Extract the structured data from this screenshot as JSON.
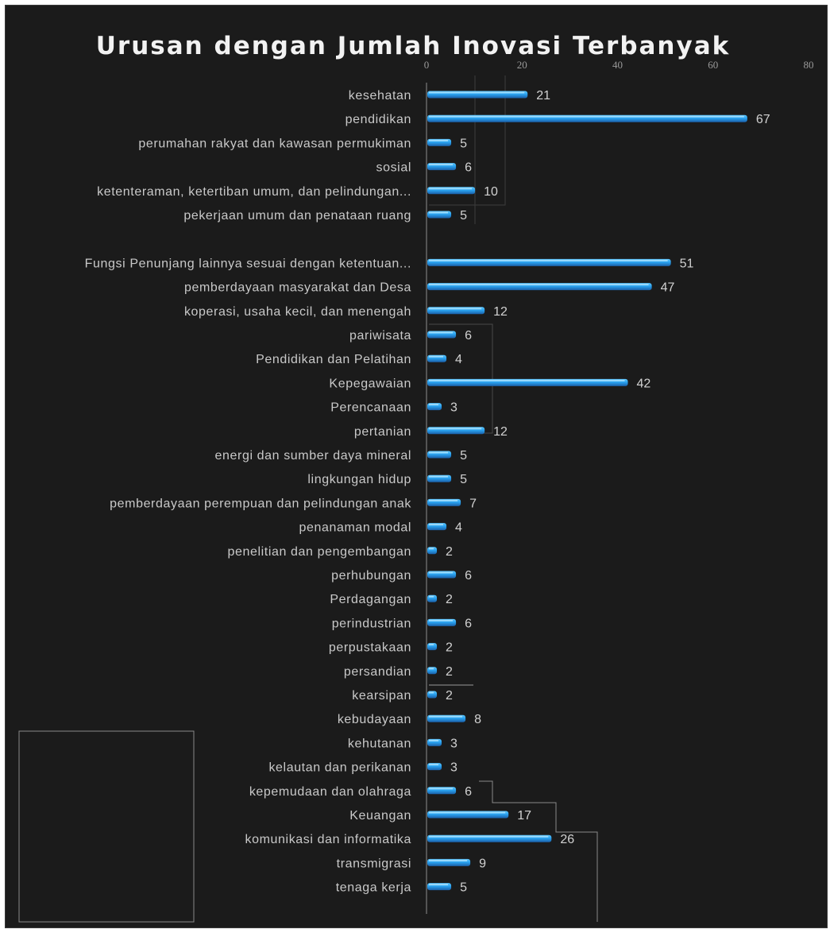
{
  "chart_data": {
    "type": "bar",
    "orientation": "horizontal",
    "title": "Urusan dengan Jumlah Inovasi Terbanyak",
    "xlim": [
      0,
      80
    ],
    "x_ticks": [
      "0",
      "20",
      "40",
      "60",
      "80"
    ],
    "grid": false,
    "legend": "none",
    "bar_color": "#29a8f0",
    "categories": [
      "kesehatan",
      "pendidikan",
      "perumahan rakyat dan kawasan permukiman",
      "sosial",
      "ketenteraman, ketertiban umum, dan pelindungan...",
      "pekerjaan umum dan penataan ruang",
      "",
      "Fungsi Penunjang lainnya sesuai dengan ketentuan...",
      "pemberdayaan masyarakat dan Desa",
      "koperasi, usaha kecil, dan menengah",
      "pariwisata",
      "Pendidikan dan Pelatihan",
      "Kepegawaian",
      "Perencanaan",
      "pertanian",
      "energi dan sumber daya mineral",
      "lingkungan hidup",
      "pemberdayaan perempuan dan pelindungan anak",
      "penanaman modal",
      "penelitian dan pengembangan",
      "perhubungan",
      "Perdagangan",
      "perindustrian",
      "perpustakaan",
      "persandian",
      "kearsipan",
      "kebudayaan",
      "kehutanan",
      "kelautan dan perikanan",
      "kepemudaan dan olahraga",
      "Keuangan",
      "komunikasi dan informatika",
      "transmigrasi",
      "tenaga kerja"
    ],
    "values": [
      21,
      67,
      5,
      6,
      10,
      5,
      null,
      51,
      47,
      12,
      6,
      4,
      42,
      3,
      12,
      5,
      5,
      7,
      4,
      2,
      6,
      2,
      6,
      2,
      2,
      2,
      8,
      3,
      3,
      6,
      17,
      26,
      9,
      5
    ]
  }
}
